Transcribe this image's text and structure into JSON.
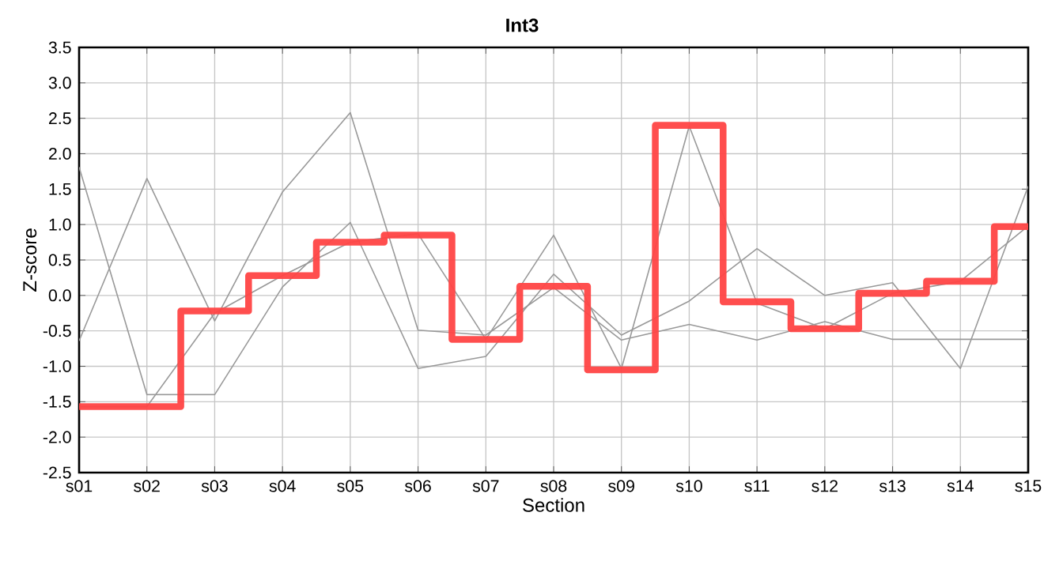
{
  "chart_data": {
    "type": "line",
    "title": "Int3",
    "xlabel": "Section",
    "ylabel": "Z-score",
    "categories": [
      "s01",
      "s02",
      "s03",
      "s04",
      "s05",
      "s06",
      "s07",
      "s08",
      "s09",
      "s10",
      "s11",
      "s12",
      "s13",
      "s14",
      "s15"
    ],
    "series": [
      {
        "color": "#999999",
        "values": [
          1.81,
          -1.4,
          -1.4,
          0.12,
          1.03,
          -1.03,
          -0.86,
          0.3,
          -0.56,
          -0.08,
          0.66,
          0.0,
          0.18,
          -1.03,
          1.54
        ]
      },
      {
        "color": "#999999",
        "values": [
          -0.64,
          1.65,
          -0.36,
          1.46,
          2.58,
          -0.49,
          -0.56,
          0.11,
          -0.63,
          -0.41,
          -0.63,
          -0.37,
          -0.62,
          -0.62,
          -0.62
        ]
      },
      {
        "color": "#999999",
        "values": [
          -1.57,
          -1.57,
          -0.25,
          0.28,
          0.75,
          0.87,
          -0.62,
          0.85,
          -1.03,
          2.39,
          -0.11,
          -0.47,
          0.03,
          0.2,
          0.98
        ]
      },
      {
        "color": "#ff4444",
        "type": "step",
        "values": [
          -1.57,
          -1.57,
          -0.22,
          0.28,
          0.75,
          0.85,
          -0.62,
          0.13,
          -1.05,
          2.4,
          -0.09,
          -0.47,
          0.03,
          0.2,
          0.97
        ]
      }
    ],
    "ylim": [
      -2.5,
      3.5
    ],
    "yticks": [
      {
        "value": -2.5,
        "label": "-2.5"
      },
      {
        "value": -2,
        "label": "-2.0"
      },
      {
        "value": -1.5,
        "label": "-1.5"
      },
      {
        "value": -1,
        "label": "-1.0"
      },
      {
        "value": -0.5,
        "label": "-0.5"
      },
      {
        "value": 0,
        "label": "0.0"
      },
      {
        "value": 0.5,
        "label": "0.5"
      },
      {
        "value": 1,
        "label": "1.0"
      },
      {
        "value": 1.5,
        "label": "1.5"
      },
      {
        "value": 2,
        "label": "2.0"
      },
      {
        "value": 2.5,
        "label": "2.5"
      },
      {
        "value": 3,
        "label": "3.0"
      },
      {
        "value": 3.5,
        "label": "3.5"
      }
    ],
    "grid": true
  }
}
